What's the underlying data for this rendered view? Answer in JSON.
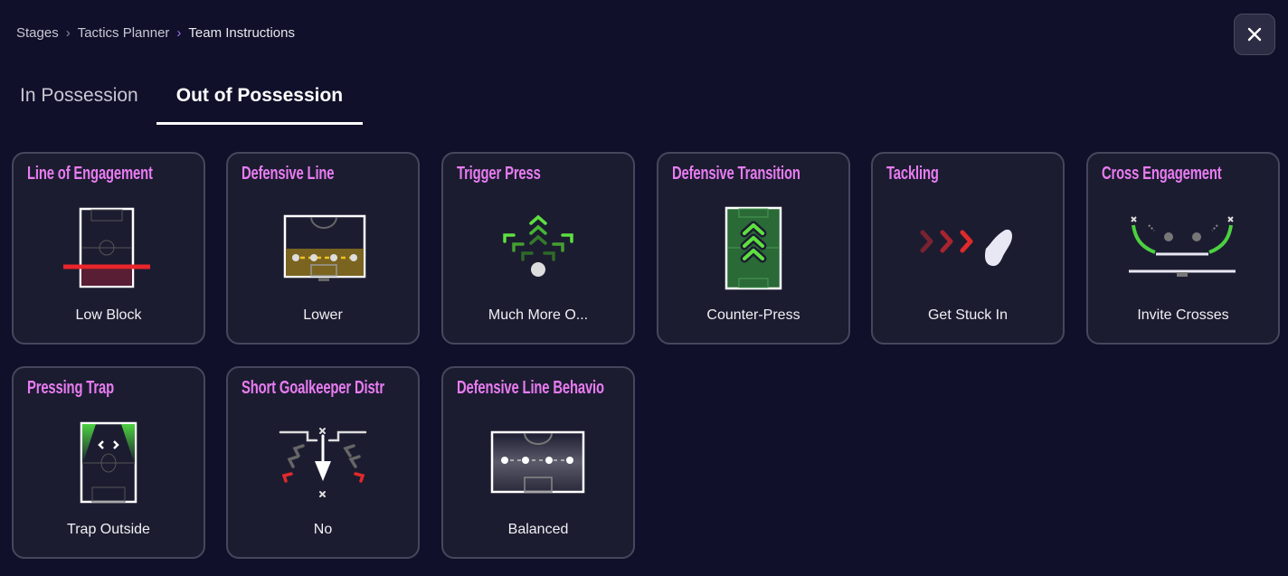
{
  "breadcrumb": [
    "Stages",
    "Tactics Planner",
    "Team Instructions"
  ],
  "close_icon": "close-icon",
  "tabs": [
    {
      "label": "In Possession",
      "active": false
    },
    {
      "label": "Out of Possession",
      "active": true
    }
  ],
  "colors": {
    "title": "#e87cf0",
    "accent": "#a070f0",
    "background": "#10102a",
    "card": "#1c1c31"
  },
  "cards": [
    {
      "title": "Line of Engagement",
      "value": "Low Block",
      "icon": "pitch-low-block-icon"
    },
    {
      "title": "Defensive Line",
      "value": "Lower",
      "icon": "defensive-line-lower-icon"
    },
    {
      "title": "Trigger Press",
      "value": "Much More O...",
      "icon": "press-arrows-icon"
    },
    {
      "title": "Defensive Transition",
      "value": "Counter-Press",
      "icon": "counter-press-pitch-icon"
    },
    {
      "title": "Tackling",
      "value": "Get Stuck In",
      "icon": "boot-tackle-icon"
    },
    {
      "title": "Cross Engagement",
      "value": "Invite Crosses",
      "icon": "cross-engagement-icon"
    },
    {
      "title": "Pressing Trap",
      "value": "Trap Outside",
      "icon": "pressing-trap-pitch-icon"
    },
    {
      "title": "Short Goalkeeper Distr",
      "value": "No",
      "icon": "goalkeeper-distribution-icon"
    },
    {
      "title": "Defensive Line Behavio",
      "value": "Balanced",
      "icon": "defensive-line-balanced-icon"
    }
  ]
}
